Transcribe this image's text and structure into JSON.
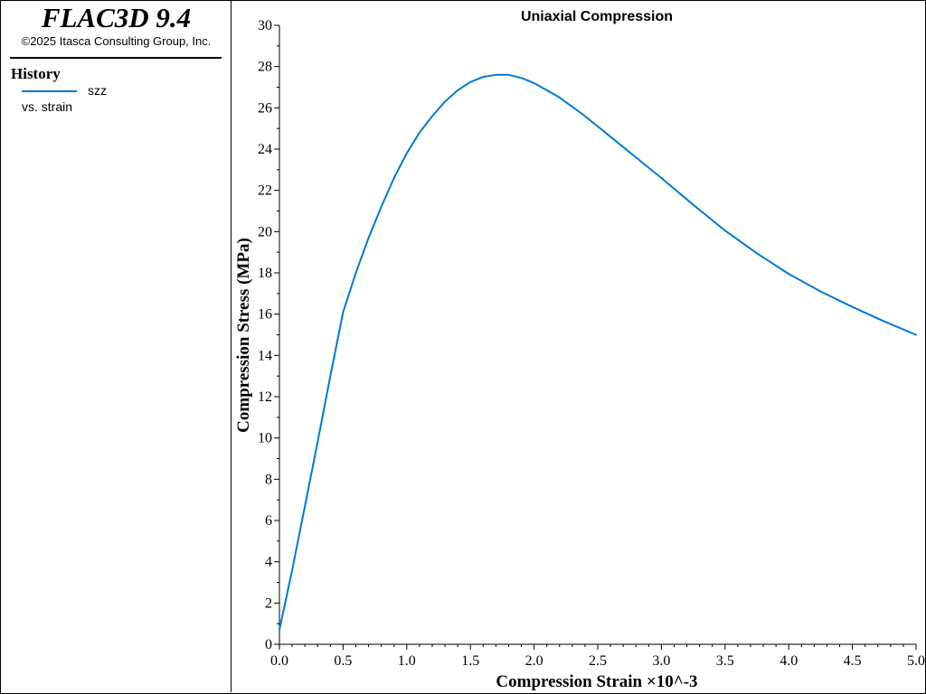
{
  "app": {
    "title": "FLAC3D 9.4",
    "copyright": "©2025 Itasca Consulting Group, Inc."
  },
  "legend": {
    "heading": "History",
    "series_label": "szz",
    "vs_label": "vs. strain",
    "series_color": "#0078d7"
  },
  "chart_data": {
    "type": "line",
    "title": "Uniaxial Compression",
    "xlabel": "Compression Strain ×10^-3",
    "ylabel": "Compression Stress (MPa)",
    "xlim": [
      0.0,
      5.0
    ],
    "ylim": [
      0,
      30
    ],
    "x_ticks": [
      "0.0",
      "0.5",
      "1.0",
      "1.5",
      "2.0",
      "2.5",
      "3.0",
      "3.5",
      "4.0",
      "4.5",
      "5.0"
    ],
    "y_ticks": [
      "0",
      "2",
      "4",
      "6",
      "8",
      "10",
      "12",
      "14",
      "16",
      "18",
      "20",
      "22",
      "24",
      "26",
      "28",
      "30"
    ],
    "grid": false,
    "series": [
      {
        "name": "szz",
        "color": "#0078d7",
        "x": [
          0.0,
          0.1,
          0.2,
          0.3,
          0.4,
          0.5,
          0.6,
          0.7,
          0.8,
          0.9,
          1.0,
          1.1,
          1.2,
          1.3,
          1.4,
          1.5,
          1.6,
          1.7,
          1.8,
          1.9,
          2.0,
          2.2,
          2.4,
          2.6,
          2.8,
          3.0,
          3.25,
          3.5,
          3.75,
          4.0,
          4.25,
          4.5,
          4.75,
          5.0
        ],
        "y": [
          0.7,
          3.6,
          6.7,
          9.8,
          13.0,
          16.1,
          18.0,
          19.7,
          21.2,
          22.6,
          23.8,
          24.8,
          25.6,
          26.3,
          26.85,
          27.25,
          27.5,
          27.6,
          27.6,
          27.45,
          27.2,
          26.5,
          25.6,
          24.6,
          23.6,
          22.6,
          21.3,
          20.05,
          18.95,
          17.95,
          17.1,
          16.35,
          15.65,
          15.0
        ]
      }
    ]
  }
}
